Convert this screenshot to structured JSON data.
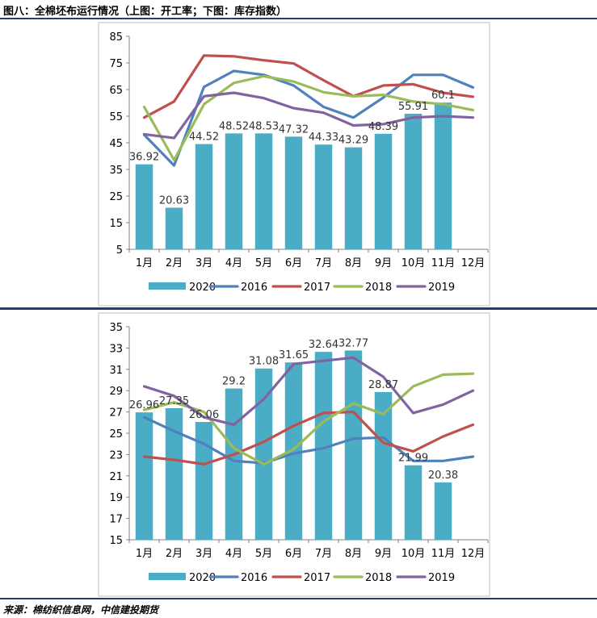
{
  "figure_title": "图八：全棉坯布运行情况（上图：开工率；下图：库存指数）",
  "source": "来源：棉纺织信息网，中信建投期货",
  "colors": {
    "2020": "#4bacc6",
    "2016": "#4f81bd",
    "2017": "#c0504d",
    "2018": "#9bbb59",
    "2019": "#8064a2",
    "divider": "#1f3f73",
    "frame": "#bfbfbf"
  },
  "chart_data": [
    {
      "type": "bar",
      "categories": [
        "1月",
        "2月",
        "3月",
        "4月",
        "5月",
        "6月",
        "7月",
        "8月",
        "9月",
        "10月",
        "11月",
        "12月"
      ],
      "ylim": [
        5,
        85
      ],
      "yticks": [
        5,
        15,
        25,
        35,
        45,
        55,
        65,
        75,
        85
      ],
      "bar_series": {
        "name": "2020",
        "values": [
          36.92,
          20.63,
          44.52,
          48.52,
          48.53,
          47.32,
          44.33,
          43.29,
          48.39,
          55.91,
          60.1,
          null
        ],
        "labels": [
          "36.92",
          "20.63",
          "44.52",
          "48.52",
          "48.53",
          "47.32",
          "44.33",
          "43.29",
          "48.39",
          "55.91",
          "60.1",
          ""
        ]
      },
      "line_series": [
        {
          "name": "2016",
          "values": [
            48,
            36.5,
            66,
            72,
            70.5,
            66.5,
            58.5,
            54.5,
            62,
            70.5,
            70.5,
            65.8
          ]
        },
        {
          "name": "2017",
          "values": [
            54.5,
            60.5,
            77.8,
            77.5,
            76,
            74.8,
            68.5,
            62.5,
            66.5,
            67,
            63.8,
            62.3
          ]
        },
        {
          "name": "2018",
          "values": [
            58.5,
            38.5,
            59.5,
            67.5,
            70,
            68,
            64,
            62.5,
            63,
            60.5,
            59.5,
            57.3
          ]
        },
        {
          "name": "2019",
          "values": [
            48.2,
            46.8,
            62.5,
            63.8,
            61.8,
            58,
            56.3,
            51.5,
            52,
            54.5,
            55,
            54.5
          ]
        }
      ],
      "legend": [
        "2020",
        "2016",
        "2017",
        "2018",
        "2019"
      ],
      "legend_position": "bottom"
    },
    {
      "type": "bar",
      "categories": [
        "1月",
        "2月",
        "3月",
        "4月",
        "5月",
        "6月",
        "7月",
        "8月",
        "9月",
        "10月",
        "11月",
        "12月"
      ],
      "ylim": [
        15,
        35
      ],
      "yticks": [
        15,
        17,
        19,
        21,
        23,
        25,
        27,
        29,
        31,
        33,
        35
      ],
      "bar_series": {
        "name": "2020",
        "values": [
          26.96,
          27.35,
          26.06,
          29.2,
          31.08,
          31.65,
          32.64,
          32.77,
          28.87,
          21.99,
          20.38,
          null
        ],
        "labels": [
          "26.96",
          "27.35",
          "26.06",
          "29.2",
          "31.08",
          "31.65",
          "32.64",
          "32.77",
          "28.87",
          "21.99",
          "20.38",
          ""
        ]
      },
      "line_series": [
        {
          "name": "2016",
          "values": [
            26.5,
            25.2,
            24,
            22.4,
            22.2,
            23.1,
            23.6,
            24.5,
            24.6,
            22.4,
            22.4,
            22.8
          ]
        },
        {
          "name": "2017",
          "values": [
            22.8,
            22.5,
            22.1,
            23,
            24.2,
            25.7,
            26.9,
            27,
            24.1,
            23.3,
            24.7,
            25.8
          ]
        },
        {
          "name": "2018",
          "values": [
            27.2,
            27.9,
            27,
            23.6,
            22.1,
            23.5,
            26.1,
            27.8,
            26.8,
            29.4,
            30.5,
            30.6
          ]
        },
        {
          "name": "2019",
          "values": [
            29.4,
            28.5,
            26.5,
            25.8,
            28.2,
            31.5,
            31.8,
            32.1,
            30.3,
            26.9,
            27.7,
            29
          ]
        }
      ],
      "legend": [
        "2020",
        "2016",
        "2017",
        "2018",
        "2019"
      ],
      "legend_position": "bottom"
    }
  ]
}
